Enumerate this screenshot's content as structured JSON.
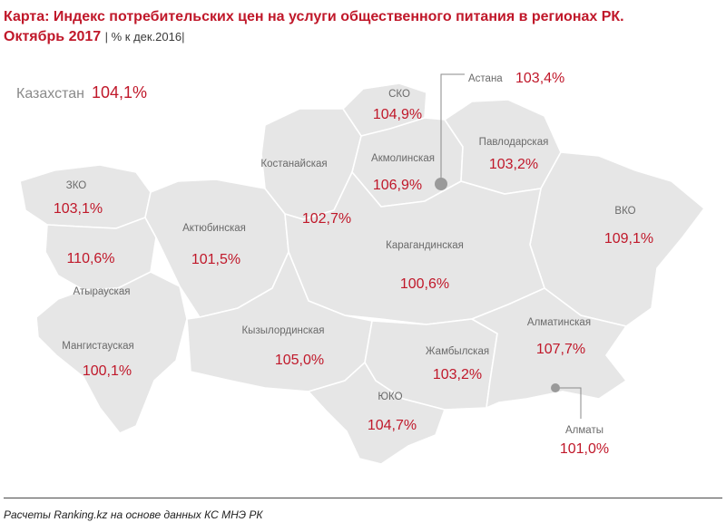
{
  "title": {
    "line1": "Карта: Индекс потребительских цен на услуги общественного питания в регионах РК.",
    "line2": "Октябрь 2017",
    "note": "| % к дек.2016|"
  },
  "national": {
    "name": "Казахстан",
    "value": "104,1%"
  },
  "regions": {
    "zko": {
      "name": "ЗКО",
      "value": "103,1%"
    },
    "atyrau": {
      "name": "Атырауская",
      "value": "110,6%"
    },
    "mangistau": {
      "name": "Мангистауская",
      "value": "100,1%"
    },
    "aktobe": {
      "name": "Актюбинская",
      "value": "101,5%"
    },
    "kostanay": {
      "name": "Костанайская",
      "value": "102,7%"
    },
    "sko": {
      "name": "СКО",
      "value": "104,9%"
    },
    "akmola": {
      "name": "Акмолинская",
      "value": "106,9%"
    },
    "pavlodar": {
      "name": "Павлодарская",
      "value": "103,2%"
    },
    "vko": {
      "name": "ВКО",
      "value": "109,1%"
    },
    "karaganda": {
      "name": "Карагандинская",
      "value": "100,6%"
    },
    "kyzylorda": {
      "name": "Кызылординская",
      "value": "105,0%"
    },
    "zhambyl": {
      "name": "Жамбылская",
      "value": "103,2%"
    },
    "almaty_region": {
      "name": "Алматинская",
      "value": "107,7%"
    },
    "yuko": {
      "name": "ЮКО",
      "value": "104,7%"
    }
  },
  "cities": {
    "astana": {
      "name": "Астана",
      "value": "103,4%"
    },
    "almaty": {
      "name": "Алматы",
      "value": "101,0%"
    }
  },
  "colors": {
    "region_fill": "#e6e6e6",
    "value_text": "#c0182a",
    "label_text": "#6a6a6a"
  },
  "footer": "Расчеты Ranking.kz на основе данных КС МНЭ РК"
}
